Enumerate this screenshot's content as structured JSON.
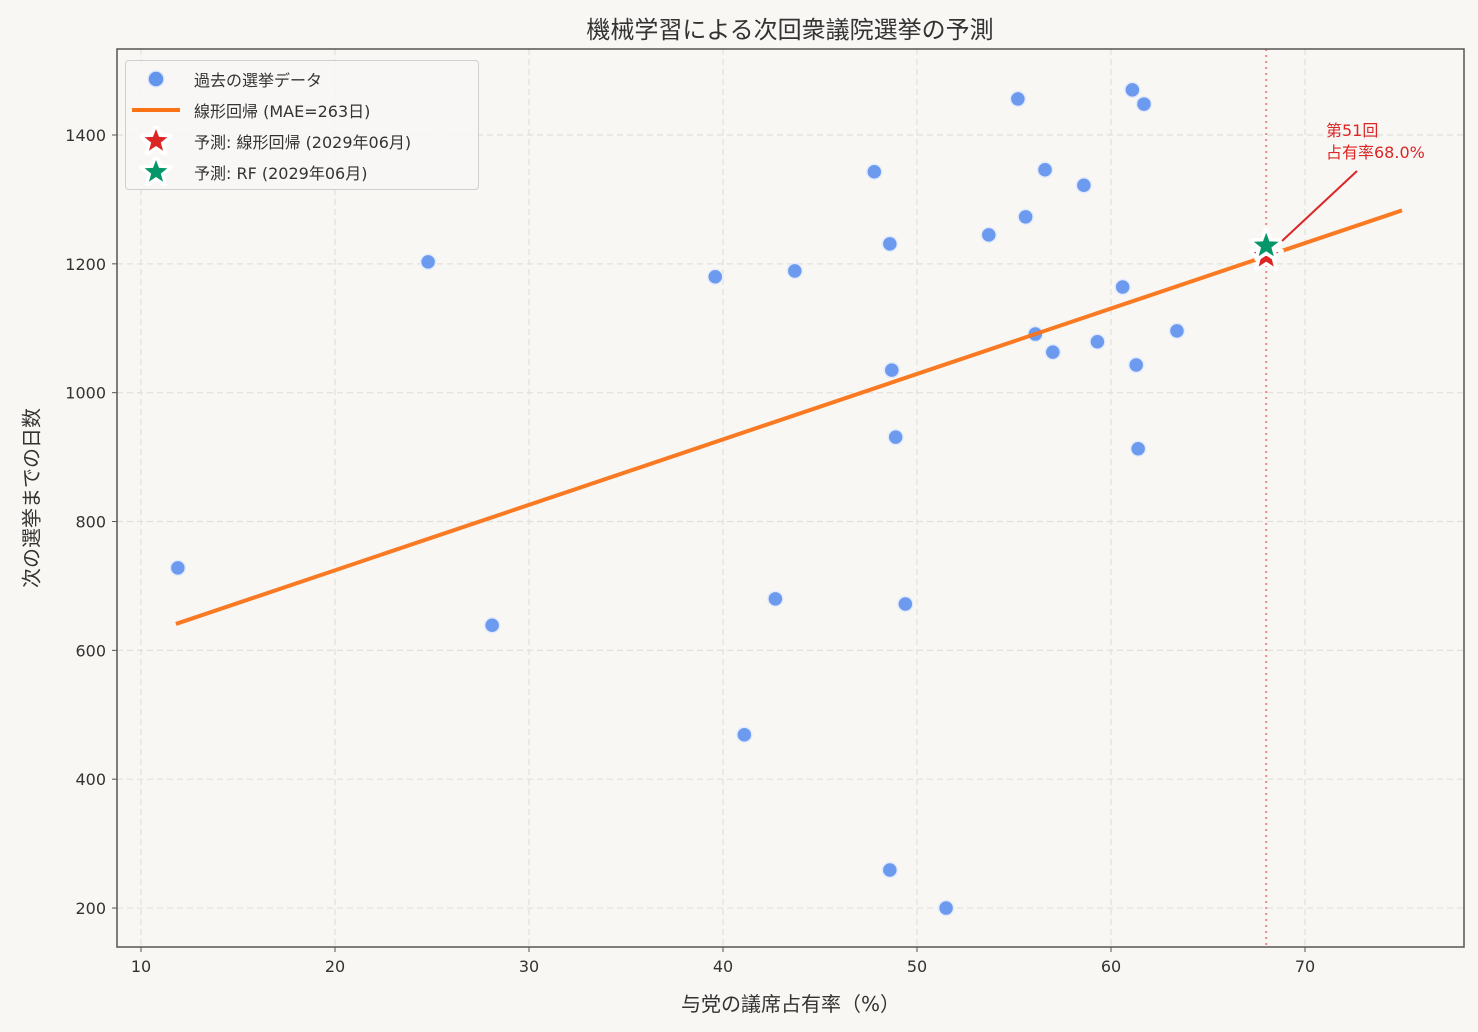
{
  "title": "機械学習による次回衆議院選挙の予測",
  "xlabel": "与党の議席占有率（%）",
  "ylabel": "次の選挙までの日数",
  "legend": {
    "items": [
      {
        "label": "過去の選挙データ",
        "type": "marker-circle",
        "color": "#6495ED"
      },
      {
        "label": "線形回帰 (MAE=263日)",
        "type": "line",
        "color": "#F97316"
      },
      {
        "label": "予測: 線形回帰 (2029年06月)",
        "type": "marker-star",
        "color": "#DC2626"
      },
      {
        "label": "予測: RF (2029年06月)",
        "type": "marker-star",
        "color": "#059669"
      }
    ]
  },
  "annotation": {
    "line1": "第51回",
    "line2": "占有率68.0%",
    "color": "#DC2626"
  },
  "colors": {
    "background": "#F8F7F4",
    "scatter": "#6495ED",
    "regression": "#F97316",
    "pred_lr": "#DC2626",
    "pred_rf": "#059669",
    "vline": "#E88A8A",
    "grid": "#E2E0DC",
    "axis": "#555555"
  },
  "chart_data": {
    "type": "scatter",
    "title": "機械学習による次回衆議院選挙の予測",
    "xlabel": "与党の議席占有率（%）",
    "ylabel": "次の選挙までの日数",
    "xlim": [
      8.9,
      78.3
    ],
    "ylim": [
      135,
      1531
    ],
    "xticks": [
      10,
      20,
      30,
      40,
      50,
      60,
      70
    ],
    "yticks": [
      200,
      400,
      600,
      800,
      1000,
      1200,
      1400
    ],
    "grid": true,
    "legend_position": "upper left",
    "series": [
      {
        "name": "過去の選挙データ",
        "type": "scatter",
        "points": [
          [
            11.9,
            728
          ],
          [
            24.8,
            1203
          ],
          [
            28.1,
            639
          ],
          [
            39.6,
            1180
          ],
          [
            41.1,
            469
          ],
          [
            42.7,
            680
          ],
          [
            43.7,
            1189
          ],
          [
            47.8,
            1343
          ],
          [
            48.6,
            1231
          ],
          [
            48.6,
            259
          ],
          [
            48.7,
            1035
          ],
          [
            48.9,
            931
          ],
          [
            49.4,
            672
          ],
          [
            51.5,
            200
          ],
          [
            53.7,
            1245
          ],
          [
            55.2,
            1456
          ],
          [
            55.6,
            1273
          ],
          [
            56.1,
            1091
          ],
          [
            56.6,
            1346
          ],
          [
            57.0,
            1063
          ],
          [
            58.6,
            1322
          ],
          [
            59.3,
            1079
          ],
          [
            60.6,
            1164
          ],
          [
            61.1,
            1470
          ],
          [
            61.3,
            1043
          ],
          [
            61.4,
            913
          ],
          [
            61.7,
            1448
          ],
          [
            63.4,
            1096
          ]
        ]
      },
      {
        "name": "線形回帰 (MAE=263日)",
        "type": "line",
        "points": [
          [
            11.8,
            641
          ],
          [
            75.0,
            1283
          ]
        ]
      },
      {
        "name": "予測: 線形回帰 (2029年06月)",
        "type": "star",
        "points": [
          [
            68.0,
            1212
          ]
        ]
      },
      {
        "name": "予測: RF (2029年06月)",
        "type": "star",
        "points": [
          [
            68.0,
            1228
          ]
        ]
      }
    ],
    "vline": {
      "x": 68.0,
      "style": "dotted"
    },
    "annotations": [
      {
        "text": "第51回\n占有率68.0%",
        "xy": [
          68.0,
          1220
        ],
        "xytext": [
          71.0,
          1380
        ]
      }
    ]
  }
}
